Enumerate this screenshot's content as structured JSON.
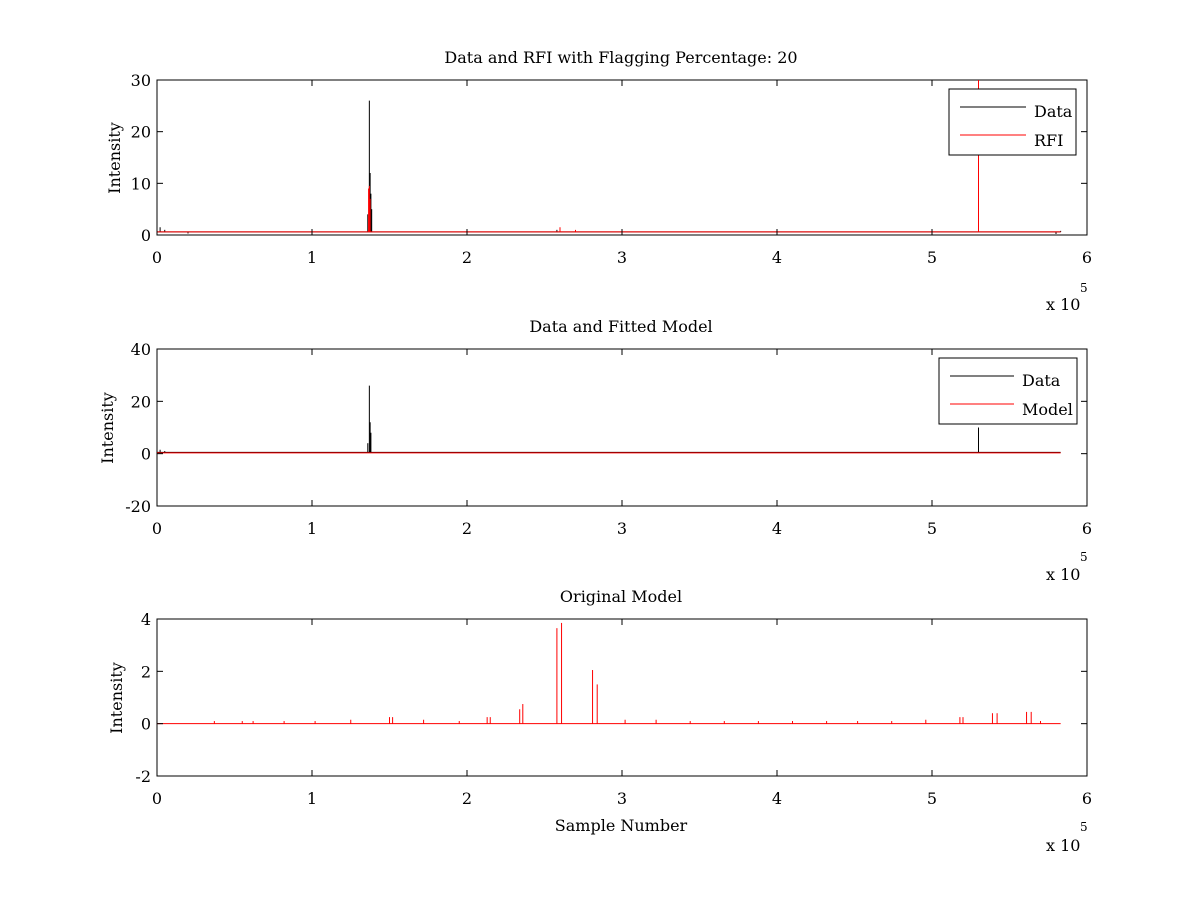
{
  "colors": {
    "data": "#000000",
    "rfi": "#ff0000",
    "model": "#ff0000",
    "frame": "#000000"
  },
  "chart_data": [
    {
      "type": "line",
      "title": "Data and RFI with Flagging Percentage: 20",
      "xlabel": "",
      "ylabel": "Intensity",
      "xlim": [
        0,
        600000
      ],
      "ylim": [
        0,
        30
      ],
      "x_ticks": [
        "0",
        "1",
        "2",
        "3",
        "4",
        "5",
        "6"
      ],
      "y_ticks": [
        "0",
        "10",
        "20",
        "30"
      ],
      "x_exponent": {
        "base": "x 10",
        "power": "5"
      },
      "legend": {
        "placement": "top-right",
        "entries": [
          "Data",
          "RFI"
        ]
      },
      "series": [
        {
          "name": "Data",
          "color": "#000000",
          "baseline": 0.6,
          "spikes": [
            [
              2000,
              1.5
            ],
            [
              5000,
              1.0
            ],
            [
              20000,
              0.3
            ],
            [
              136000,
              4
            ],
            [
              137000,
              26
            ],
            [
              137500,
              12
            ],
            [
              138000,
              8
            ],
            [
              138500,
              5
            ],
            [
              258000,
              1.0
            ],
            [
              580000,
              0.2
            ],
            [
              583000,
              0.8
            ]
          ]
        },
        {
          "name": "RFI",
          "color": "#ff0000",
          "baseline": 0.6,
          "spikes": [
            [
              136500,
              9
            ],
            [
              137000,
              9.5
            ],
            [
              137500,
              7
            ],
            [
              260000,
              1.5
            ],
            [
              270000,
              1.0
            ],
            [
              300000,
              0.8
            ],
            [
              530000,
              30
            ]
          ]
        }
      ]
    },
    {
      "type": "line",
      "title": "Data and Fitted Model",
      "xlabel": "",
      "ylabel": "Intensity",
      "xlim": [
        0,
        600000
      ],
      "ylim": [
        -20,
        40
      ],
      "x_ticks": [
        "0",
        "1",
        "2",
        "3",
        "4",
        "5",
        "6"
      ],
      "y_ticks": [
        "-20",
        "0",
        "20",
        "40"
      ],
      "x_exponent": {
        "base": "x 10",
        "power": "5"
      },
      "legend": {
        "placement": "top-right",
        "entries": [
          "Data",
          "Model"
        ]
      },
      "series": [
        {
          "name": "Data",
          "color": "#000000",
          "baseline": 0.5,
          "spikes": [
            [
              2000,
              1.5
            ],
            [
              5000,
              1.0
            ],
            [
              136000,
              4
            ],
            [
              137000,
              26
            ],
            [
              137500,
              12
            ],
            [
              138000,
              8
            ],
            [
              530000,
              10
            ]
          ]
        },
        {
          "name": "Model",
          "color": "#ff0000",
          "baseline": 0.3,
          "spikes": []
        }
      ]
    },
    {
      "type": "line",
      "title": "Original Model",
      "xlabel": "Sample Number",
      "ylabel": "Intensity",
      "xlim": [
        0,
        600000
      ],
      "ylim": [
        -2,
        4
      ],
      "x_ticks": [
        "0",
        "1",
        "2",
        "3",
        "4",
        "5",
        "6"
      ],
      "y_ticks": [
        "-2",
        "0",
        "2",
        "4"
      ],
      "x_exponent": {
        "base": "x 10",
        "power": "5"
      },
      "series": [
        {
          "name": "Model",
          "color": "#ff0000",
          "baseline": 0.0,
          "spikes": [
            [
              37000,
              0.1
            ],
            [
              55000,
              0.1
            ],
            [
              62000,
              0.1
            ],
            [
              82000,
              0.1
            ],
            [
              102000,
              0.1
            ],
            [
              125000,
              0.15
            ],
            [
              150000,
              0.25
            ],
            [
              152000,
              0.25
            ],
            [
              172000,
              0.15
            ],
            [
              195000,
              0.1
            ],
            [
              213000,
              0.25
            ],
            [
              215000,
              0.25
            ],
            [
              234000,
              0.55
            ],
            [
              236000,
              0.75
            ],
            [
              258000,
              3.65
            ],
            [
              261000,
              3.85
            ],
            [
              281000,
              2.05
            ],
            [
              284000,
              1.5
            ],
            [
              302000,
              0.15
            ],
            [
              322000,
              0.15
            ],
            [
              344000,
              0.1
            ],
            [
              366000,
              0.1
            ],
            [
              388000,
              0.1
            ],
            [
              410000,
              0.1
            ],
            [
              432000,
              0.1
            ],
            [
              452000,
              0.1
            ],
            [
              474000,
              0.1
            ],
            [
              496000,
              0.15
            ],
            [
              518000,
              0.25
            ],
            [
              520000,
              0.25
            ],
            [
              539000,
              0.4
            ],
            [
              542000,
              0.4
            ],
            [
              561000,
              0.45
            ],
            [
              564000,
              0.45
            ],
            [
              570000,
              0.1
            ]
          ]
        }
      ]
    }
  ]
}
